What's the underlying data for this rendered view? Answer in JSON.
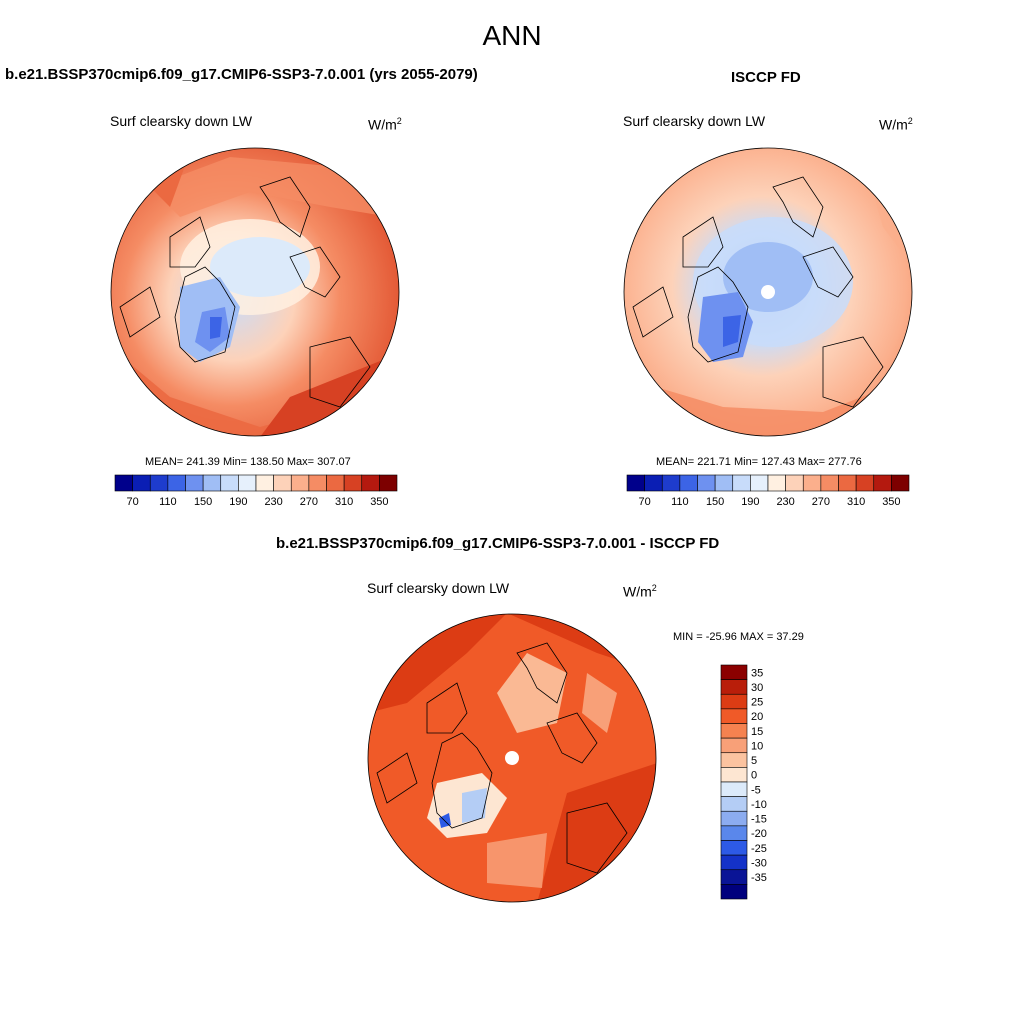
{
  "main_title": "ANN",
  "panels": {
    "test": {
      "case_title": "b.e21.BSSP370cmip6.f09_g17.CMIP6-SSP3-7.0.001 (yrs 2055-2079)",
      "field": "Surf clearsky down LW",
      "units_base": "W/m",
      "units_exp": "2",
      "stats": "MEAN= 241.39  Min= 138.50  Max= 307.07"
    },
    "obs": {
      "case_title": "ISCCP FD",
      "field": "Surf clearsky down LW",
      "units_base": "W/m",
      "units_exp": "2",
      "stats": "MEAN= 221.71  Min= 127.43  Max= 277.76"
    },
    "diff": {
      "case_title": "b.e21.BSSP370cmip6.f09_g17.CMIP6-SSP3-7.0.001 - ISCCP FD",
      "field": "Surf clearsky down LW",
      "units_base": "W/m",
      "units_exp": "2",
      "stats": "MIN = -25.96 MAX =  37.29"
    }
  },
  "chart_data": [
    {
      "type": "heatmap",
      "projection": "north polar stereographic",
      "title": "Surf clearsky down LW",
      "case": "b.e21.BSSP370cmip6.f09_g17.CMIP6-SSP3-7.0.001 (yrs 2055-2079)",
      "units": "W/m2",
      "mean": 241.39,
      "min": 138.5,
      "max": 307.07,
      "colorbar_orientation": "horizontal",
      "colorbar_levels": [
        70,
        90,
        110,
        130,
        150,
        170,
        190,
        210,
        230,
        250,
        270,
        290,
        310,
        330,
        350
      ],
      "colorbar_tick_labels": [
        "70",
        "110",
        "150",
        "190",
        "230",
        "270",
        "310",
        "350"
      ]
    },
    {
      "type": "heatmap",
      "projection": "north polar stereographic",
      "title": "Surf clearsky down LW",
      "case": "ISCCP FD",
      "units": "W/m2",
      "mean": 221.71,
      "min": 127.43,
      "max": 277.76,
      "colorbar_orientation": "horizontal",
      "colorbar_levels": [
        70,
        90,
        110,
        130,
        150,
        170,
        190,
        210,
        230,
        250,
        270,
        290,
        310,
        330,
        350
      ],
      "colorbar_tick_labels": [
        "70",
        "110",
        "150",
        "190",
        "230",
        "270",
        "310",
        "350"
      ]
    },
    {
      "type": "heatmap",
      "projection": "north polar stereographic",
      "title": "Surf clearsky down LW",
      "case": "b.e21.BSSP370cmip6.f09_g17.CMIP6-SSP3-7.0.001 - ISCCP FD",
      "units": "W/m2",
      "min": -25.96,
      "max": 37.29,
      "colorbar_orientation": "vertical",
      "colorbar_levels": [
        35,
        30,
        25,
        20,
        15,
        10,
        5,
        0,
        -5,
        -10,
        -15,
        -20,
        -25,
        -30,
        -35
      ],
      "colorbar_tick_labels": [
        "35",
        "30",
        "25",
        "20",
        "15",
        "10",
        "5",
        "0",
        "-5",
        "-10",
        "-15",
        "-20",
        "-25",
        "-30",
        "-35"
      ]
    }
  ],
  "colors": {
    "abs_colormap": [
      "#00008b",
      "#0a1eb4",
      "#1e3ccd",
      "#3c64e6",
      "#6e91f0",
      "#a0bef5",
      "#c8dcfa",
      "#e6f0fc",
      "#fff0e1",
      "#fdd2b9",
      "#fbaf8c",
      "#f58c64",
      "#eb6941",
      "#d74123",
      "#b4190f",
      "#7d0000"
    ],
    "diff_colormap": [
      "#8b0000",
      "#b91e0a",
      "#dc3c14",
      "#f05a28",
      "#f58250",
      "#f8a078",
      "#fbc3a0",
      "#fde6d2",
      "#dceafa",
      "#b4cdf5",
      "#8cacf0",
      "#5a87eb",
      "#2d5ae6",
      "#1432c8",
      "#0a1496",
      "#00007d"
    ]
  }
}
